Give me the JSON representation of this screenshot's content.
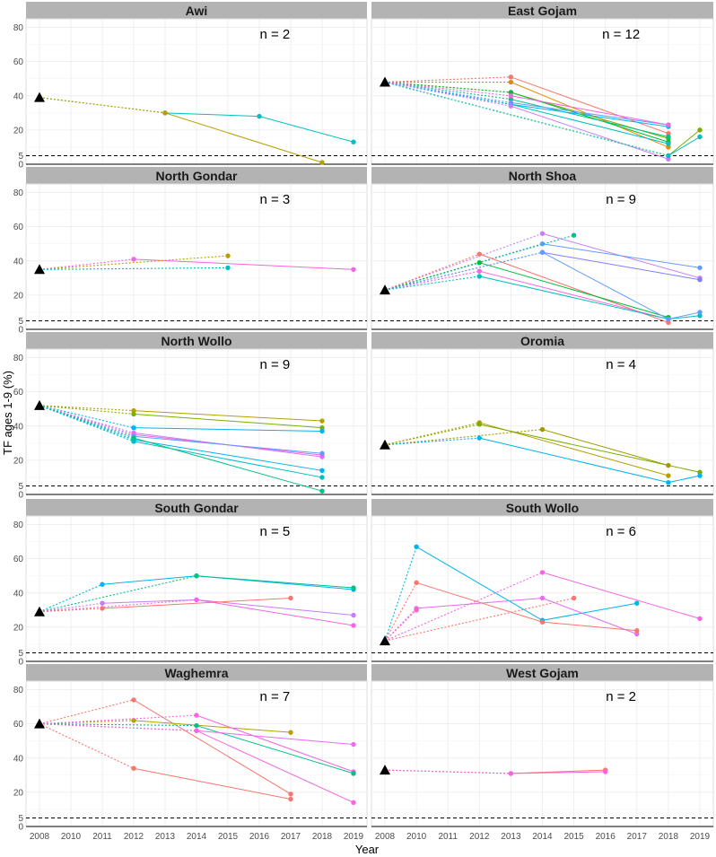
{
  "chart_data": {
    "type": "line",
    "title": "",
    "xlabel": "Year",
    "ylabel": "TF ages 1-9 (%)",
    "x_ticks": [
      2008,
      2010,
      2011,
      2012,
      2013,
      2014,
      2015,
      2016,
      2017,
      2018,
      2019
    ],
    "y_ticks": [
      0,
      5,
      20,
      40,
      60,
      80
    ],
    "ylim": [
      0,
      85
    ],
    "n_label": "n = ",
    "threshold": 5,
    "panels": [
      {
        "name": "Awi",
        "n": "2",
        "baseline": 39,
        "series": [
          {
            "color": "#00BFC4",
            "points": [
              [
                2013,
                30
              ],
              [
                2016,
                28
              ],
              [
                2019,
                13
              ]
            ]
          },
          {
            "color": "#B79F00",
            "points": [
              [
                2013,
                30
              ],
              [
                2018,
                1
              ]
            ]
          }
        ]
      },
      {
        "name": "East Gojam",
        "n": "12",
        "baseline": 48,
        "series": [
          {
            "color": "#F8766D",
            "points": [
              [
                2013,
                51
              ],
              [
                2018,
                18
              ]
            ]
          },
          {
            "color": "#DE8C00",
            "points": [
              [
                2013,
                48
              ],
              [
                2018,
                10
              ]
            ]
          },
          {
            "color": "#7CAE00",
            "points": [
              [
                2013,
                42
              ],
              [
                2018,
                15
              ]
            ]
          },
          {
            "color": "#00BA38",
            "points": [
              [
                2013,
                42
              ],
              [
                2018,
                13
              ]
            ]
          },
          {
            "color": "#00C08B",
            "points": [
              [
                2013,
                38
              ],
              [
                2018,
                16
              ]
            ]
          },
          {
            "color": "#00BFC4",
            "points": [
              [
                2013,
                35
              ],
              [
                2018,
                12
              ]
            ]
          },
          {
            "color": "#00B4F0",
            "points": [
              [
                2013,
                35
              ],
              [
                2018,
                22
              ]
            ]
          },
          {
            "color": "#619CFF",
            "points": [
              [
                2013,
                36
              ],
              [
                2018,
                23
              ]
            ]
          },
          {
            "color": "#C77CFF",
            "points": [
              [
                2013,
                34
              ],
              [
                2018,
                3
              ]
            ]
          },
          {
            "color": "#F564E3",
            "points": [
              [
                2013,
                40
              ],
              [
                2018,
                23
              ]
            ]
          },
          {
            "color": "#7CAE00",
            "points": [
              [
                2018,
                5
              ],
              [
                2019,
                20
              ]
            ]
          },
          {
            "color": "#00BFC4",
            "points": [
              [
                2018,
                5
              ],
              [
                2019,
                16
              ]
            ]
          }
        ]
      },
      {
        "name": "North Gondar",
        "n": "3",
        "baseline": 35,
        "series": [
          {
            "color": "#F564E3",
            "points": [
              [
                2012,
                41
              ],
              [
                2019,
                35
              ]
            ]
          },
          {
            "color": "#B79F00",
            "points": [
              [
                2015,
                43
              ]
            ]
          },
          {
            "color": "#00BFC4",
            "points": [
              [
                2015,
                36
              ]
            ]
          }
        ]
      },
      {
        "name": "North Shoa",
        "n": "9",
        "baseline": 23,
        "series": [
          {
            "color": "#C77CFF",
            "points": [
              [
                2014,
                56
              ],
              [
                2019,
                30
              ]
            ]
          },
          {
            "color": "#619CFF",
            "points": [
              [
                2014,
                50
              ],
              [
                2019,
                36
              ]
            ]
          },
          {
            "color": "#7F7FFF",
            "points": [
              [
                2014,
                45
              ],
              [
                2019,
                29
              ]
            ]
          },
          {
            "color": "#00C08B",
            "points": [
              [
                2015,
                55
              ]
            ]
          },
          {
            "color": "#F8766D",
            "points": [
              [
                2012,
                44
              ],
              [
                2018,
                4
              ]
            ]
          },
          {
            "color": "#00BA38",
            "points": [
              [
                2012,
                39
              ],
              [
                2018,
                7
              ]
            ]
          },
          {
            "color": "#F564E3",
            "points": [
              [
                2012,
                34
              ],
              [
                2018,
                6
              ]
            ]
          },
          {
            "color": "#00BFC4",
            "points": [
              [
                2012,
                31
              ],
              [
                2018,
                6
              ],
              [
                2019,
                8
              ]
            ]
          },
          {
            "color": "#619CFF",
            "points": [
              [
                2014,
                45
              ],
              [
                2018,
                6
              ],
              [
                2019,
                10
              ]
            ]
          }
        ]
      },
      {
        "name": "North Wollo",
        "n": "9",
        "baseline": 52,
        "series": [
          {
            "color": "#B79F00",
            "points": [
              [
                2012,
                49
              ],
              [
                2018,
                43
              ]
            ]
          },
          {
            "color": "#7CAE00",
            "points": [
              [
                2012,
                47
              ],
              [
                2018,
                39
              ]
            ]
          },
          {
            "color": "#00B4F0",
            "points": [
              [
                2012,
                39
              ],
              [
                2018,
                37
              ]
            ]
          },
          {
            "color": "#C77CFF",
            "points": [
              [
                2012,
                36
              ],
              [
                2018,
                22
              ]
            ]
          },
          {
            "color": "#F564E3",
            "points": [
              [
                2012,
                35
              ],
              [
                2018,
                23
              ]
            ]
          },
          {
            "color": "#619CFF",
            "points": [
              [
                2012,
                34
              ],
              [
                2018,
                24
              ]
            ]
          },
          {
            "color": "#00B4F0",
            "points": [
              [
                2012,
                32
              ],
              [
                2018,
                14
              ]
            ]
          },
          {
            "color": "#00BFC4",
            "points": [
              [
                2012,
                31
              ],
              [
                2018,
                10
              ]
            ]
          },
          {
            "color": "#00C08B",
            "points": [
              [
                2012,
                33
              ],
              [
                2018,
                2
              ]
            ]
          }
        ]
      },
      {
        "name": "Oromia",
        "n": "4",
        "baseline": 29,
        "series": [
          {
            "color": "#B79F00",
            "points": [
              [
                2012,
                42
              ],
              [
                2018,
                11
              ]
            ]
          },
          {
            "color": "#7CAE00",
            "points": [
              [
                2012,
                41
              ],
              [
                2019,
                13
              ]
            ]
          },
          {
            "color": "#9E9A00",
            "points": [
              [
                2014,
                38
              ],
              [
                2018,
                17
              ]
            ]
          },
          {
            "color": "#00B4F0",
            "points": [
              [
                2012,
                33
              ],
              [
                2018,
                7
              ],
              [
                2019,
                11
              ]
            ]
          }
        ]
      },
      {
        "name": "South Gondar",
        "n": "5",
        "baseline": 29,
        "series": [
          {
            "color": "#00B4F0",
            "points": [
              [
                2011,
                45
              ],
              [
                2014,
                50
              ],
              [
                2019,
                42
              ]
            ]
          },
          {
            "color": "#00C08B",
            "points": [
              [
                2014,
                50
              ],
              [
                2019,
                43
              ]
            ]
          },
          {
            "color": "#C77CFF",
            "points": [
              [
                2011,
                34
              ],
              [
                2014,
                36
              ],
              [
                2019,
                27
              ]
            ]
          },
          {
            "color": "#F564E3",
            "points": [
              [
                2014,
                36
              ],
              [
                2019,
                21
              ]
            ]
          },
          {
            "color": "#F8766D",
            "points": [
              [
                2011,
                31
              ],
              [
                2017,
                37
              ]
            ]
          }
        ]
      },
      {
        "name": "South Wollo",
        "n": "6",
        "baseline": 12,
        "series": [
          {
            "color": "#00B4F0",
            "points": [
              [
                2010,
                67
              ],
              [
                2014,
                24
              ],
              [
                2017,
                34
              ]
            ]
          },
          {
            "color": "#F564E3",
            "points": [
              [
                2014,
                52
              ],
              [
                2019,
                25
              ]
            ]
          },
          {
            "color": "#E76BF3",
            "points": [
              [
                2010,
                31
              ],
              [
                2014,
                37
              ],
              [
                2017,
                16
              ]
            ]
          },
          {
            "color": "#F8766D",
            "points": [
              [
                2010,
                46
              ],
              [
                2014,
                23
              ],
              [
                2017,
                18
              ]
            ]
          },
          {
            "color": "#FF61C3",
            "points": [
              [
                2010,
                30
              ]
            ]
          },
          {
            "color": "#F8766D",
            "points": [
              [
                2015,
                37
              ]
            ]
          }
        ]
      },
      {
        "name": "Waghemra",
        "n": "7",
        "baseline": 60,
        "series": [
          {
            "color": "#F8766D",
            "points": [
              [
                2012,
                74
              ],
              [
                2017,
                19
              ]
            ]
          },
          {
            "color": "#B79F00",
            "points": [
              [
                2012,
                62
              ],
              [
                2017,
                55
              ]
            ]
          },
          {
            "color": "#F564E3",
            "points": [
              [
                2014,
                65
              ],
              [
                2019,
                32
              ]
            ]
          },
          {
            "color": "#00C08B",
            "points": [
              [
                2014,
                59
              ],
              [
                2019,
                31
              ]
            ]
          },
          {
            "color": "#E76BF3",
            "points": [
              [
                2014,
                56
              ],
              [
                2019,
                48
              ]
            ]
          },
          {
            "color": "#F564E3",
            "points": [
              [
                2014,
                56
              ],
              [
                2019,
                14
              ]
            ]
          },
          {
            "color": "#F8766D",
            "points": [
              [
                2012,
                34
              ],
              [
                2017,
                16
              ]
            ]
          }
        ]
      },
      {
        "name": "West Gojam",
        "n": "2",
        "baseline": 33,
        "series": [
          {
            "color": "#F8766D",
            "points": [
              [
                2013,
                31
              ],
              [
                2016,
                33
              ]
            ]
          },
          {
            "color": "#F564E3",
            "points": [
              [
                2013,
                31
              ],
              [
                2016,
                32
              ]
            ]
          }
        ]
      }
    ]
  }
}
